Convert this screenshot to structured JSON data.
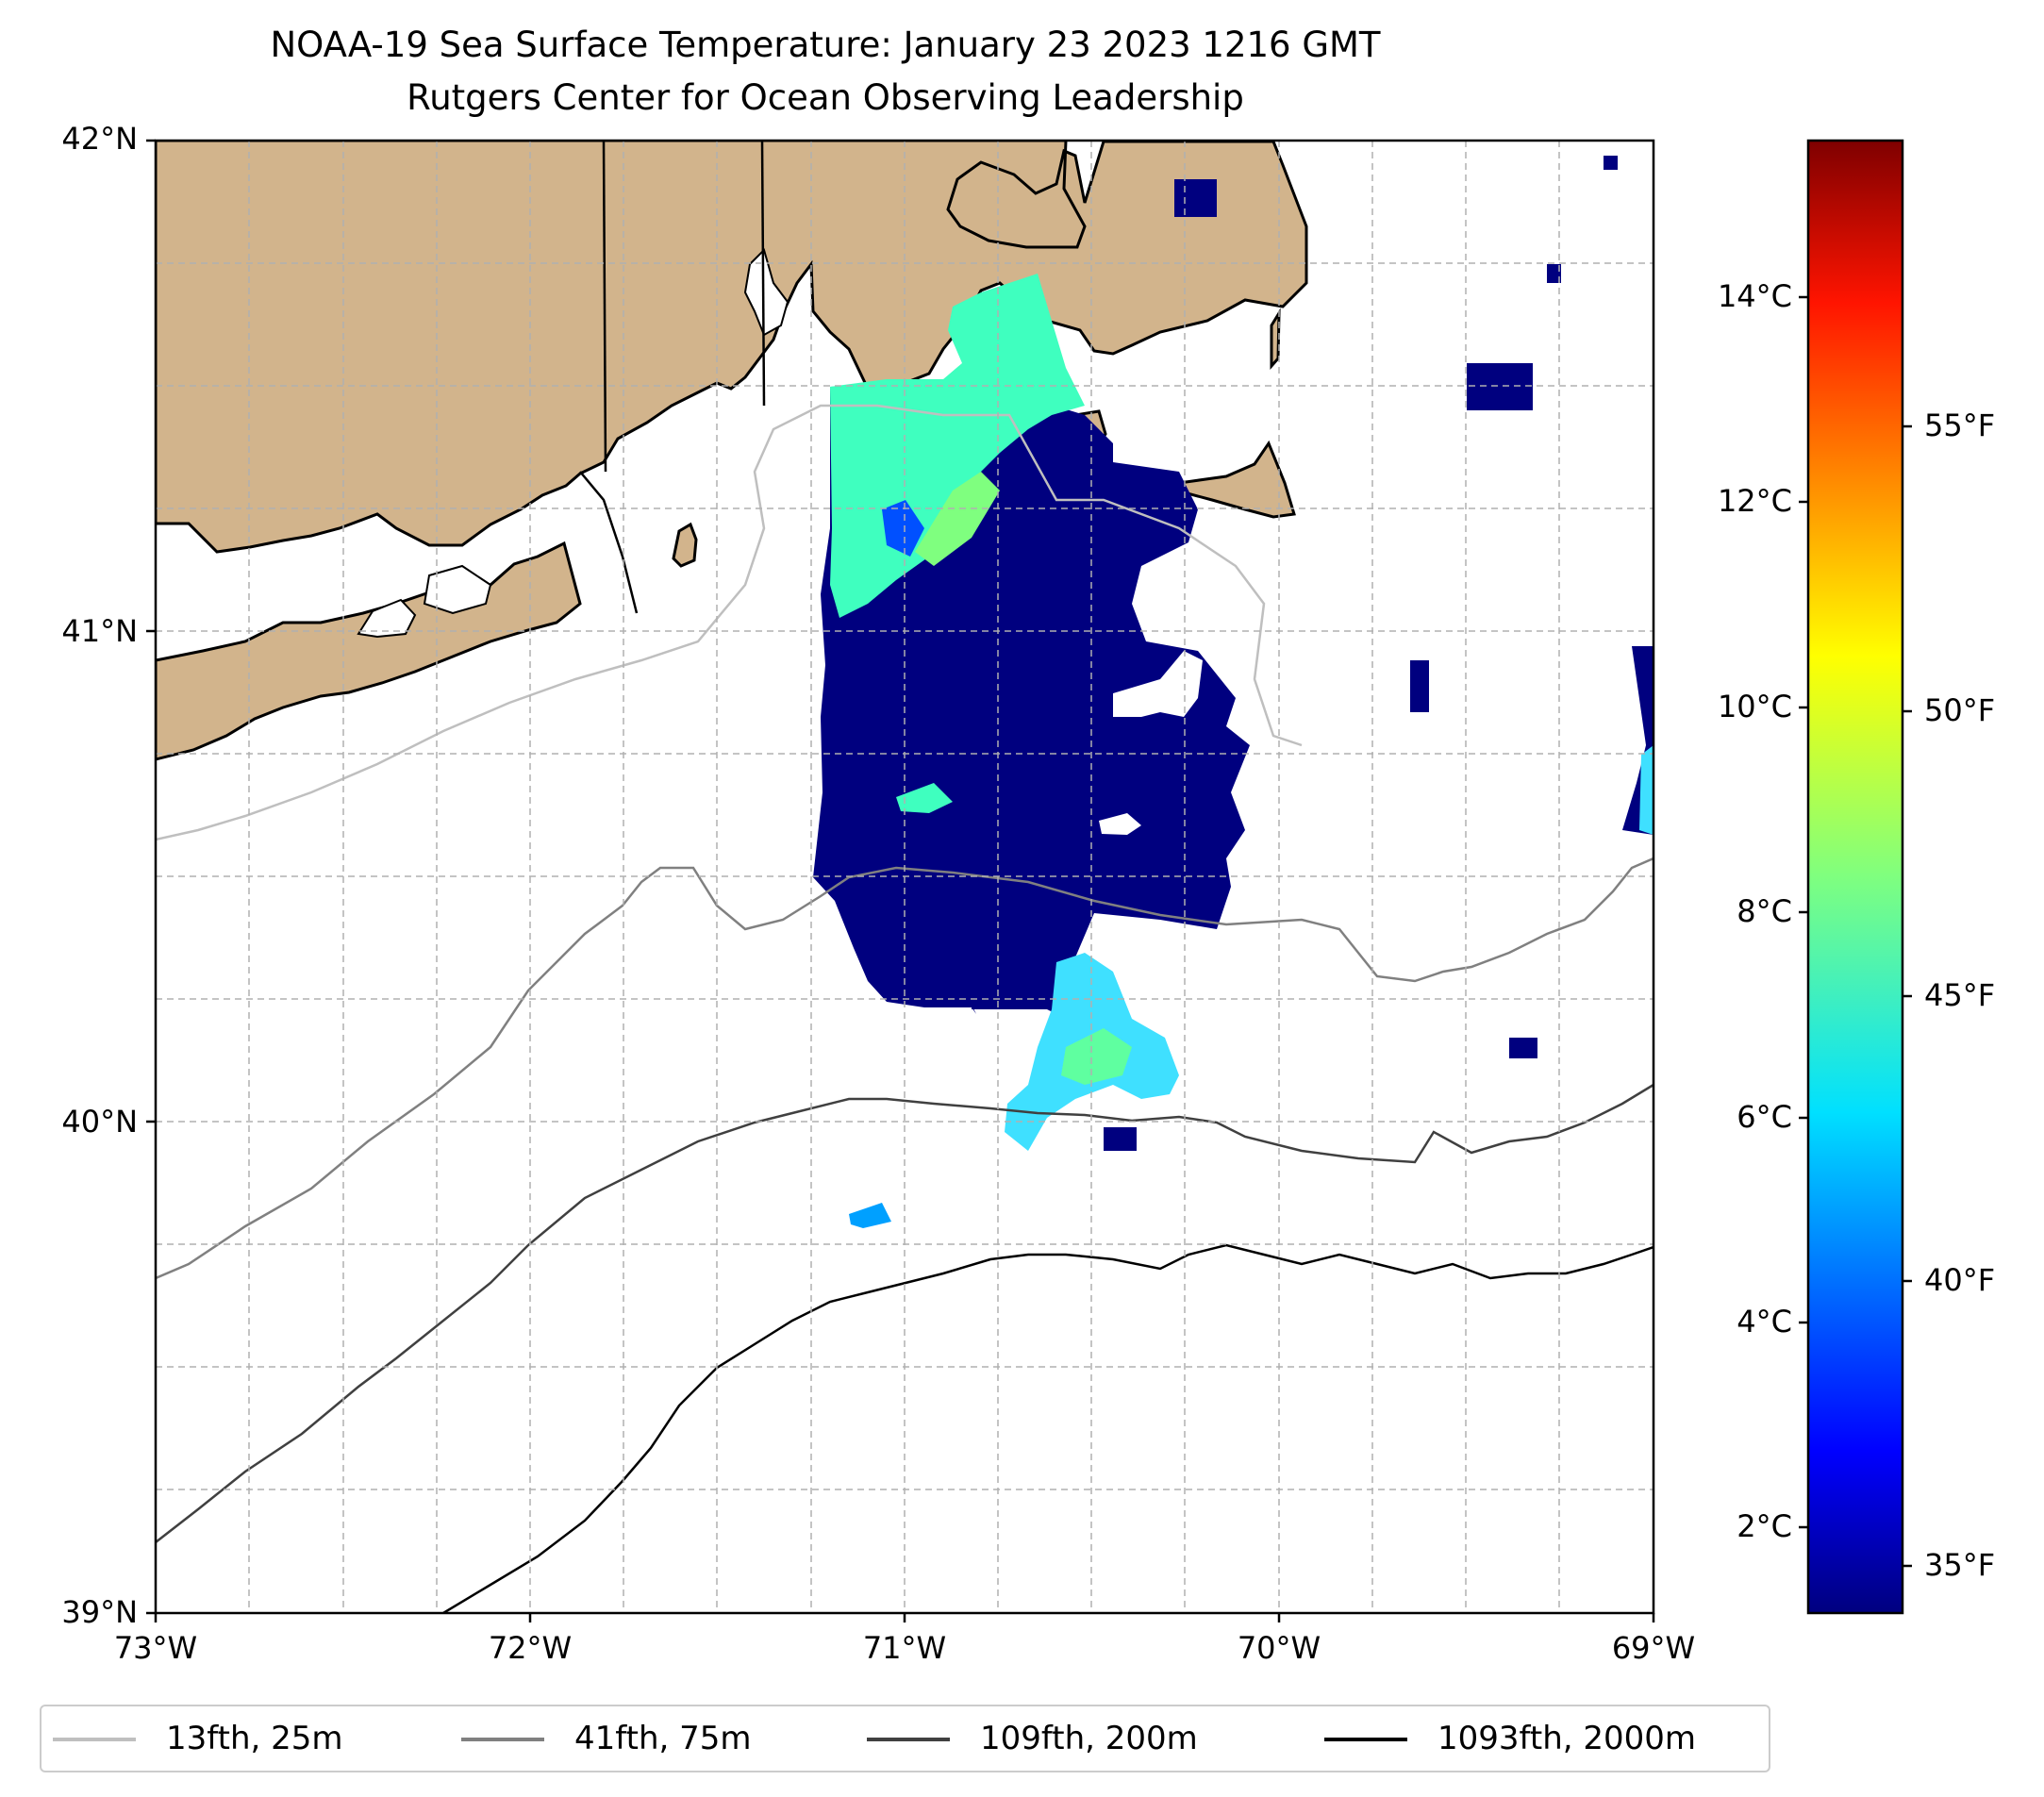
{
  "title": {
    "line1": "NOAA-19 Sea Surface Temperature: January 23 2023 1216 GMT",
    "line2": "Rutgers Center for Ocean Observing Leadership"
  },
  "map": {
    "lon_range": [
      -73,
      -69
    ],
    "lat_range": [
      39,
      42
    ],
    "lat_ticks": [
      "42°N",
      "41°N",
      "40°N",
      "39°N"
    ],
    "lon_ticks": [
      "73°W",
      "72°W",
      "71°W",
      "70°W",
      "69°W"
    ],
    "gridlines": true,
    "land_color": "#d2b48c"
  },
  "colorbar": {
    "colormap": "jet",
    "celsius_ticks": [
      "14°C",
      "12°C",
      "10°C",
      "8°C",
      "6°C",
      "4°C",
      "2°C"
    ],
    "fahrenheit_ticks": [
      "55°F",
      "50°F",
      "45°F",
      "40°F",
      "35°F"
    ]
  },
  "legend": {
    "items": [
      {
        "label": "13fth, 25m",
        "color": "#bfbfbf"
      },
      {
        "label": "41fth, 75m",
        "color": "#808080"
      },
      {
        "label": "109fth, 200m",
        "color": "#404040"
      },
      {
        "label": "1093fth, 2000m",
        "color": "#000000"
      }
    ]
  }
}
